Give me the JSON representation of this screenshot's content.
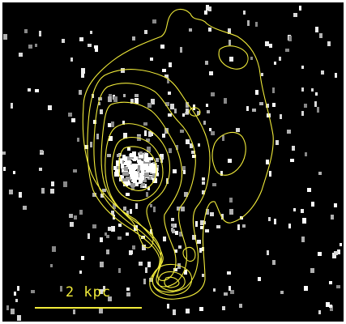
{
  "figure": {
    "scale_bar_label": "2 kpc",
    "colors": {
      "background": "#000000",
      "frame": "#ffffff",
      "contours": "#f2ec3a",
      "sources": "#ffffff",
      "scale_bar": "#f2ec3a"
    }
  }
}
